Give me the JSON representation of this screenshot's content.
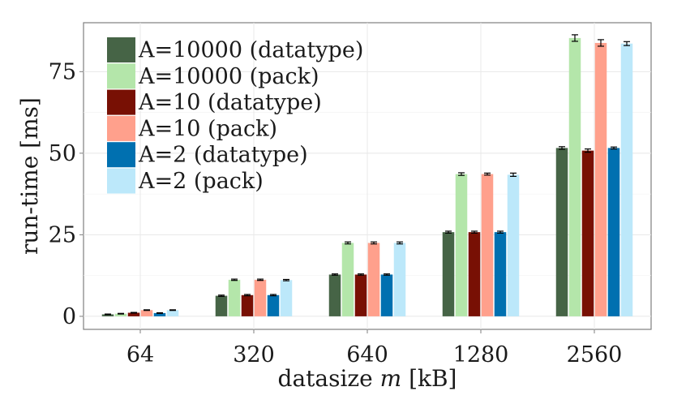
{
  "chart_data": {
    "type": "bar",
    "title": "",
    "xlabel": "datasize m [kB]",
    "xlabel_parts": {
      "prefix": "datasize ",
      "var": "m",
      "suffix": " [kB]"
    },
    "ylabel": "run-time [ms]",
    "categories": [
      "64",
      "320",
      "640",
      "1280",
      "2560"
    ],
    "ylim": [
      -4,
      90
    ],
    "yticks": [
      0,
      25,
      50,
      75
    ],
    "grid": true,
    "legend_position": "top-left",
    "error_bars": true,
    "series": [
      {
        "name": "A=10000 (datatype)",
        "color": "#466446",
        "values": [
          0.6,
          6.3,
          12.8,
          25.8,
          51.6
        ],
        "errors": [
          0.1,
          0.2,
          0.2,
          0.3,
          0.4
        ]
      },
      {
        "name": "A=10000 (pack)",
        "color": "#b4e6aa",
        "values": [
          0.8,
          11.2,
          22.5,
          43.6,
          85.3
        ],
        "errors": [
          0.1,
          0.2,
          0.3,
          0.4,
          1.0
        ]
      },
      {
        "name": "A=10 (datatype)",
        "color": "#781004",
        "values": [
          1.1,
          6.5,
          12.8,
          25.8,
          50.8
        ],
        "errors": [
          0.1,
          0.2,
          0.2,
          0.3,
          0.5
        ]
      },
      {
        "name": "A=10 (pack)",
        "color": "#ffa08c",
        "values": [
          1.9,
          11.2,
          22.5,
          43.6,
          83.8
        ],
        "errors": [
          0.1,
          0.2,
          0.3,
          0.3,
          1.0
        ]
      },
      {
        "name": "A=2 (datatype)",
        "color": "#0070b0",
        "values": [
          1.0,
          6.5,
          12.8,
          25.8,
          51.6
        ],
        "errors": [
          0.1,
          0.2,
          0.2,
          0.3,
          0.3
        ]
      },
      {
        "name": "A=2 (pack)",
        "color": "#bce8fa",
        "values": [
          1.9,
          11.1,
          22.5,
          43.4,
          83.6
        ],
        "errors": [
          0.1,
          0.2,
          0.3,
          0.5,
          0.6
        ]
      }
    ]
  }
}
